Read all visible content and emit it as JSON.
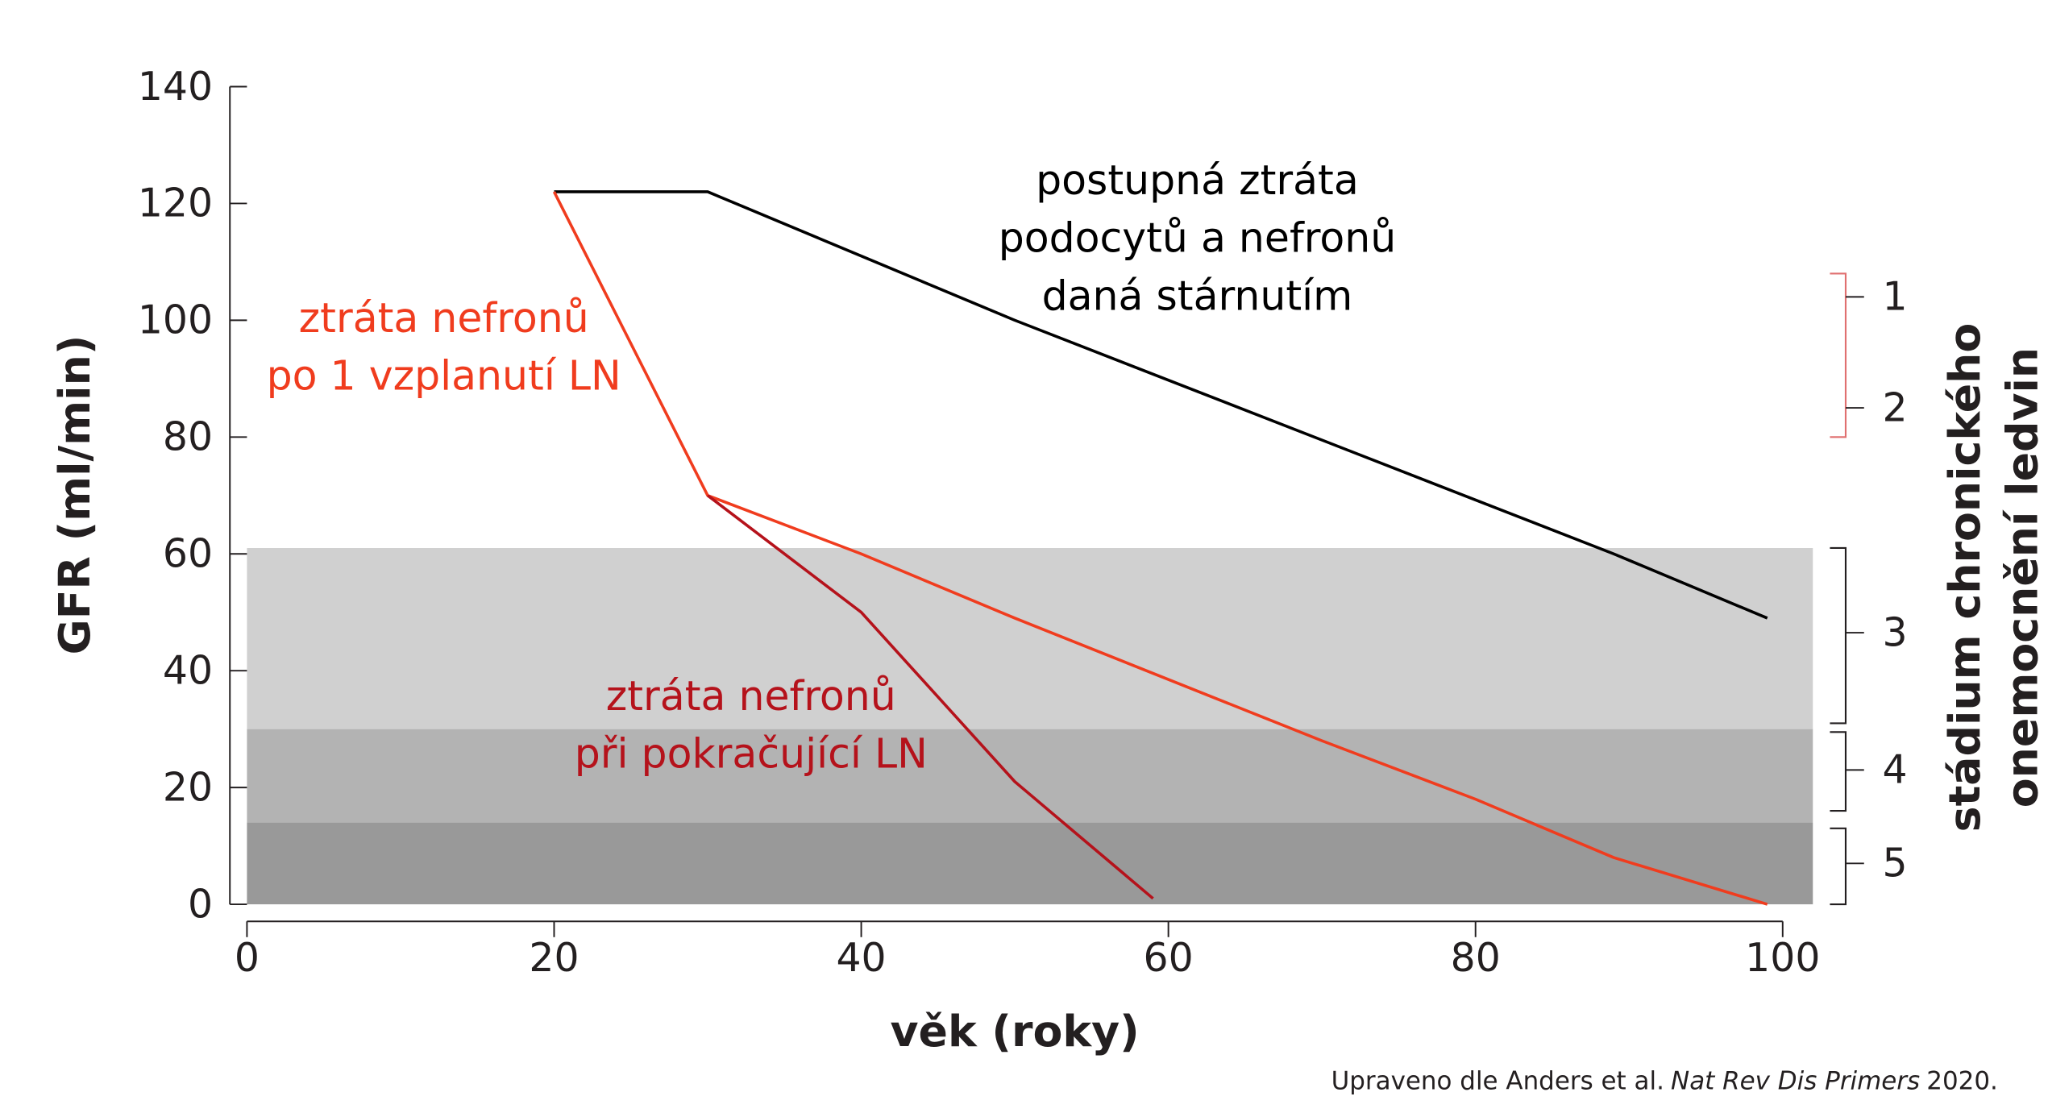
{
  "chart_data": {
    "type": "line",
    "x_label": "věk (roky)",
    "y_label": "GFR (ml/min)",
    "y2_label": [
      "stádium chronického",
      "onemocnění ledvin"
    ],
    "xlim": [
      0,
      100
    ],
    "xticks": [
      0,
      20,
      40,
      60,
      80,
      100
    ],
    "ylim": [
      0,
      140
    ],
    "yticks": [
      0,
      20,
      40,
      60,
      80,
      100,
      120,
      140
    ],
    "bands": [
      {
        "range": [
          30,
          61
        ],
        "color": "#d0d0d0"
      },
      {
        "range": [
          14,
          30
        ],
        "color": "#b3b3b3"
      },
      {
        "range": [
          0,
          14
        ],
        "color": "#999999"
      }
    ],
    "stage_brackets": [
      {
        "range": [
          80,
          108
        ],
        "color": "#e07070"
      },
      {
        "range": [
          31,
          61
        ],
        "color": "#231f20"
      },
      {
        "range": [
          16,
          29.5
        ],
        "color": "#231f20"
      },
      {
        "range": [
          0,
          13
        ],
        "color": "#231f20"
      }
    ],
    "stage_labels": [
      {
        "value": 104,
        "label": "1"
      },
      {
        "value": 85,
        "label": "2"
      },
      {
        "value": 46.5,
        "label": "3"
      },
      {
        "value": 23,
        "label": "4"
      },
      {
        "value": 7,
        "label": "5"
      }
    ],
    "series": [
      {
        "label_lines": [
          "postupná ztráta",
          "podocytů a nefronů",
          "daná stárnutím"
        ],
        "color": "#000000",
        "x": [
          20,
          30,
          50,
          89,
          99
        ],
        "values": [
          122,
          122,
          100,
          60,
          49
        ]
      },
      {
        "label_lines": [
          "ztráta nefronů",
          "po 1 vzplanutí LN"
        ],
        "color": "#f03c1e",
        "x": [
          20,
          30,
          40,
          50,
          70,
          80,
          89,
          99
        ],
        "values": [
          122,
          70,
          60,
          49,
          28,
          18,
          8,
          0
        ]
      },
      {
        "label_lines": [
          "ztráta nefronů",
          "při pokračující LN"
        ],
        "color": "#b5121b",
        "x": [
          30,
          40,
          50,
          59
        ],
        "values": [
          70,
          50,
          21,
          1
        ]
      }
    ],
    "source": {
      "text": "Upraveno dle Anders et al.",
      "journal": "Nat Rev Dis Primers",
      "year": "2020."
    }
  }
}
